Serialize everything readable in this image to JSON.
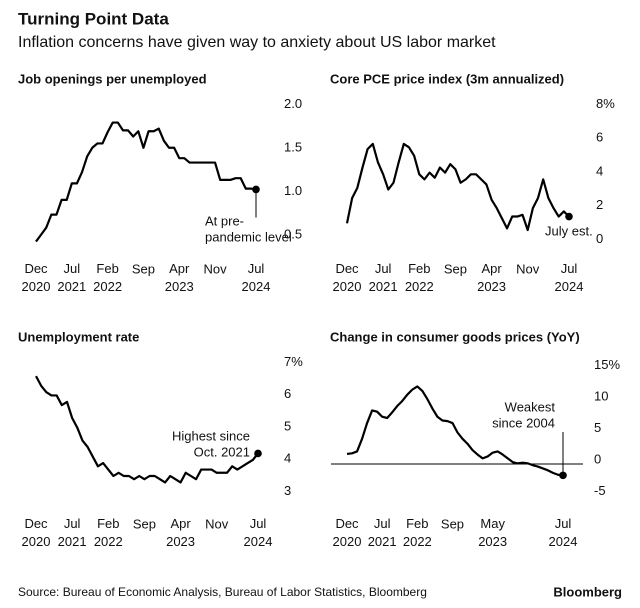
{
  "title": "Turning Point Data",
  "subtitle": "Inflation concerns have given way to anxiety about US labor market",
  "source": "Source: Bureau of Economic Analysis, Bureau of Labor Statistics, Bloomberg",
  "brand": "Bloomberg",
  "chart_data": [
    {
      "type": "line",
      "title": "Job openings per unemployed",
      "color": "#000000",
      "end_marker": true,
      "categories": [
        "Dec 2020",
        null,
        null,
        null,
        null,
        null,
        null,
        "Jul 2021",
        null,
        null,
        null,
        null,
        null,
        null,
        "Feb 2022",
        null,
        null,
        null,
        null,
        null,
        null,
        "Sep",
        null,
        null,
        null,
        null,
        null,
        null,
        "Apr 2023",
        null,
        null,
        null,
        null,
        null,
        null,
        "Nov",
        null,
        null,
        null,
        null,
        null,
        null,
        null,
        "Jul 2024"
      ],
      "values": [
        0.47,
        0.55,
        0.63,
        0.78,
        0.78,
        0.95,
        0.95,
        1.14,
        1.14,
        1.27,
        1.45,
        1.55,
        1.6,
        1.6,
        1.73,
        1.84,
        1.84,
        1.75,
        1.75,
        1.68,
        1.74,
        1.55,
        1.74,
        1.74,
        1.77,
        1.63,
        1.55,
        1.55,
        1.43,
        1.43,
        1.38,
        1.38,
        1.38,
        1.38,
        1.38,
        1.38,
        1.18,
        1.18,
        1.18,
        1.2,
        1.2,
        1.08,
        1.08,
        1.07
      ],
      "ylim": [
        0.35,
        2.1
      ],
      "yticks": [
        {
          "value": 2,
          "label": "2.0"
        },
        1.5,
        {
          "value": 1,
          "label": "1.0"
        },
        0.5
      ],
      "annotation": [
        "At pre-",
        "pandemic level"
      ]
    },
    {
      "type": "line",
      "title": "Core PCE price index (3m annualized)",
      "color": "#000000",
      "end_marker": true,
      "categories": [
        "Dec 2020",
        null,
        null,
        null,
        null,
        null,
        null,
        "Jul 2021",
        null,
        null,
        null,
        null,
        null,
        null,
        "Feb 2022",
        null,
        null,
        null,
        null,
        null,
        null,
        "Sep",
        null,
        null,
        null,
        null,
        null,
        null,
        "Apr 2023",
        null,
        null,
        null,
        null,
        null,
        null,
        "Nov",
        null,
        null,
        null,
        null,
        null,
        null,
        null,
        "Jul 2024"
      ],
      "values": [
        1.2,
        2.7,
        3.3,
        4.5,
        5.6,
        5.9,
        4.8,
        4.1,
        3.2,
        3.6,
        4.8,
        5.9,
        5.7,
        5.2,
        4.1,
        3.8,
        4.2,
        3.9,
        4.5,
        4.2,
        4.7,
        4.4,
        3.6,
        3.8,
        4.1,
        4.1,
        3.8,
        3.5,
        2.6,
        2.1,
        1.5,
        0.9,
        1.6,
        1.6,
        1.7,
        0.8,
        2.1,
        2.7,
        3.8,
        2.7,
        2.1,
        1.6,
        1.9,
        1.6
      ],
      "ylim": [
        -0.5,
        8.5
      ],
      "yticks": [
        {
          "value": 8,
          "label": "8%"
        },
        6,
        4,
        2,
        0
      ],
      "annotation": [
        "July est."
      ]
    },
    {
      "type": "line",
      "title": "Unemployment rate",
      "color": "#000000",
      "end_marker": true,
      "categories": [
        "Dec 2020",
        null,
        null,
        null,
        null,
        null,
        null,
        "Jul 2021",
        null,
        null,
        null,
        null,
        null,
        null,
        "Feb 2022",
        null,
        null,
        null,
        null,
        null,
        null,
        "Sep",
        null,
        null,
        null,
        null,
        null,
        null,
        "Apr 2023",
        null,
        null,
        null,
        null,
        null,
        null,
        "Nov",
        null,
        null,
        null,
        null,
        null,
        null,
        null,
        "Jul 2024"
      ],
      "values": [
        6.7,
        6.4,
        6.2,
        6.1,
        6.1,
        5.8,
        5.9,
        5.4,
        5.1,
        4.7,
        4.5,
        4.2,
        3.9,
        4.0,
        3.8,
        3.6,
        3.7,
        3.6,
        3.6,
        3.5,
        3.6,
        3.5,
        3.6,
        3.6,
        3.5,
        3.4,
        3.6,
        3.5,
        3.4,
        3.7,
        3.6,
        3.5,
        3.8,
        3.8,
        3.8,
        3.7,
        3.7,
        3.7,
        3.9,
        3.8,
        3.9,
        4.0,
        4.1,
        4.3
      ],
      "ylim": [
        2.7,
        7.2
      ],
      "yticks": [
        {
          "value": 7,
          "label": "7%"
        },
        6,
        5,
        4,
        3
      ],
      "annotation": [
        "Highest since",
        "Oct. 2021"
      ]
    },
    {
      "type": "line",
      "title": "Change in consumer goods prices (YoY)",
      "color": "#000000",
      "end_marker": true,
      "zero_line": true,
      "categories": [
        "Dec 2020",
        null,
        null,
        null,
        null,
        null,
        null,
        "Jul 2021",
        null,
        null,
        null,
        null,
        null,
        null,
        "Feb 2022",
        null,
        null,
        null,
        null,
        null,
        null,
        "Sep",
        null,
        null,
        null,
        null,
        null,
        null,
        null,
        "May 2023",
        null,
        null,
        null,
        null,
        null,
        null,
        null,
        null,
        null,
        null,
        null,
        null,
        null,
        "Jul 2024"
      ],
      "values": [
        1.6,
        1.7,
        2.0,
        4.0,
        6.5,
        8.5,
        8.3,
        7.5,
        7.3,
        8.2,
        9.2,
        10.0,
        11.0,
        11.8,
        12.3,
        11.6,
        10.3,
        8.8,
        7.5,
        6.9,
        6.8,
        6.5,
        5.0,
        4.0,
        3.2,
        2.2,
        1.5,
        0.9,
        1.2,
        1.8,
        2.0,
        1.5,
        0.9,
        0.3,
        0.1,
        0.2,
        0.1,
        -0.2,
        -0.4,
        -0.7,
        -1.0,
        -1.4,
        -1.7,
        -1.8
      ],
      "ylim": [
        -6.5,
        16.5
      ],
      "yticks": [
        {
          "value": 15,
          "label": "15%"
        },
        10,
        5,
        0,
        -5
      ],
      "annotation": [
        "Weakest",
        "since 2004"
      ]
    }
  ]
}
